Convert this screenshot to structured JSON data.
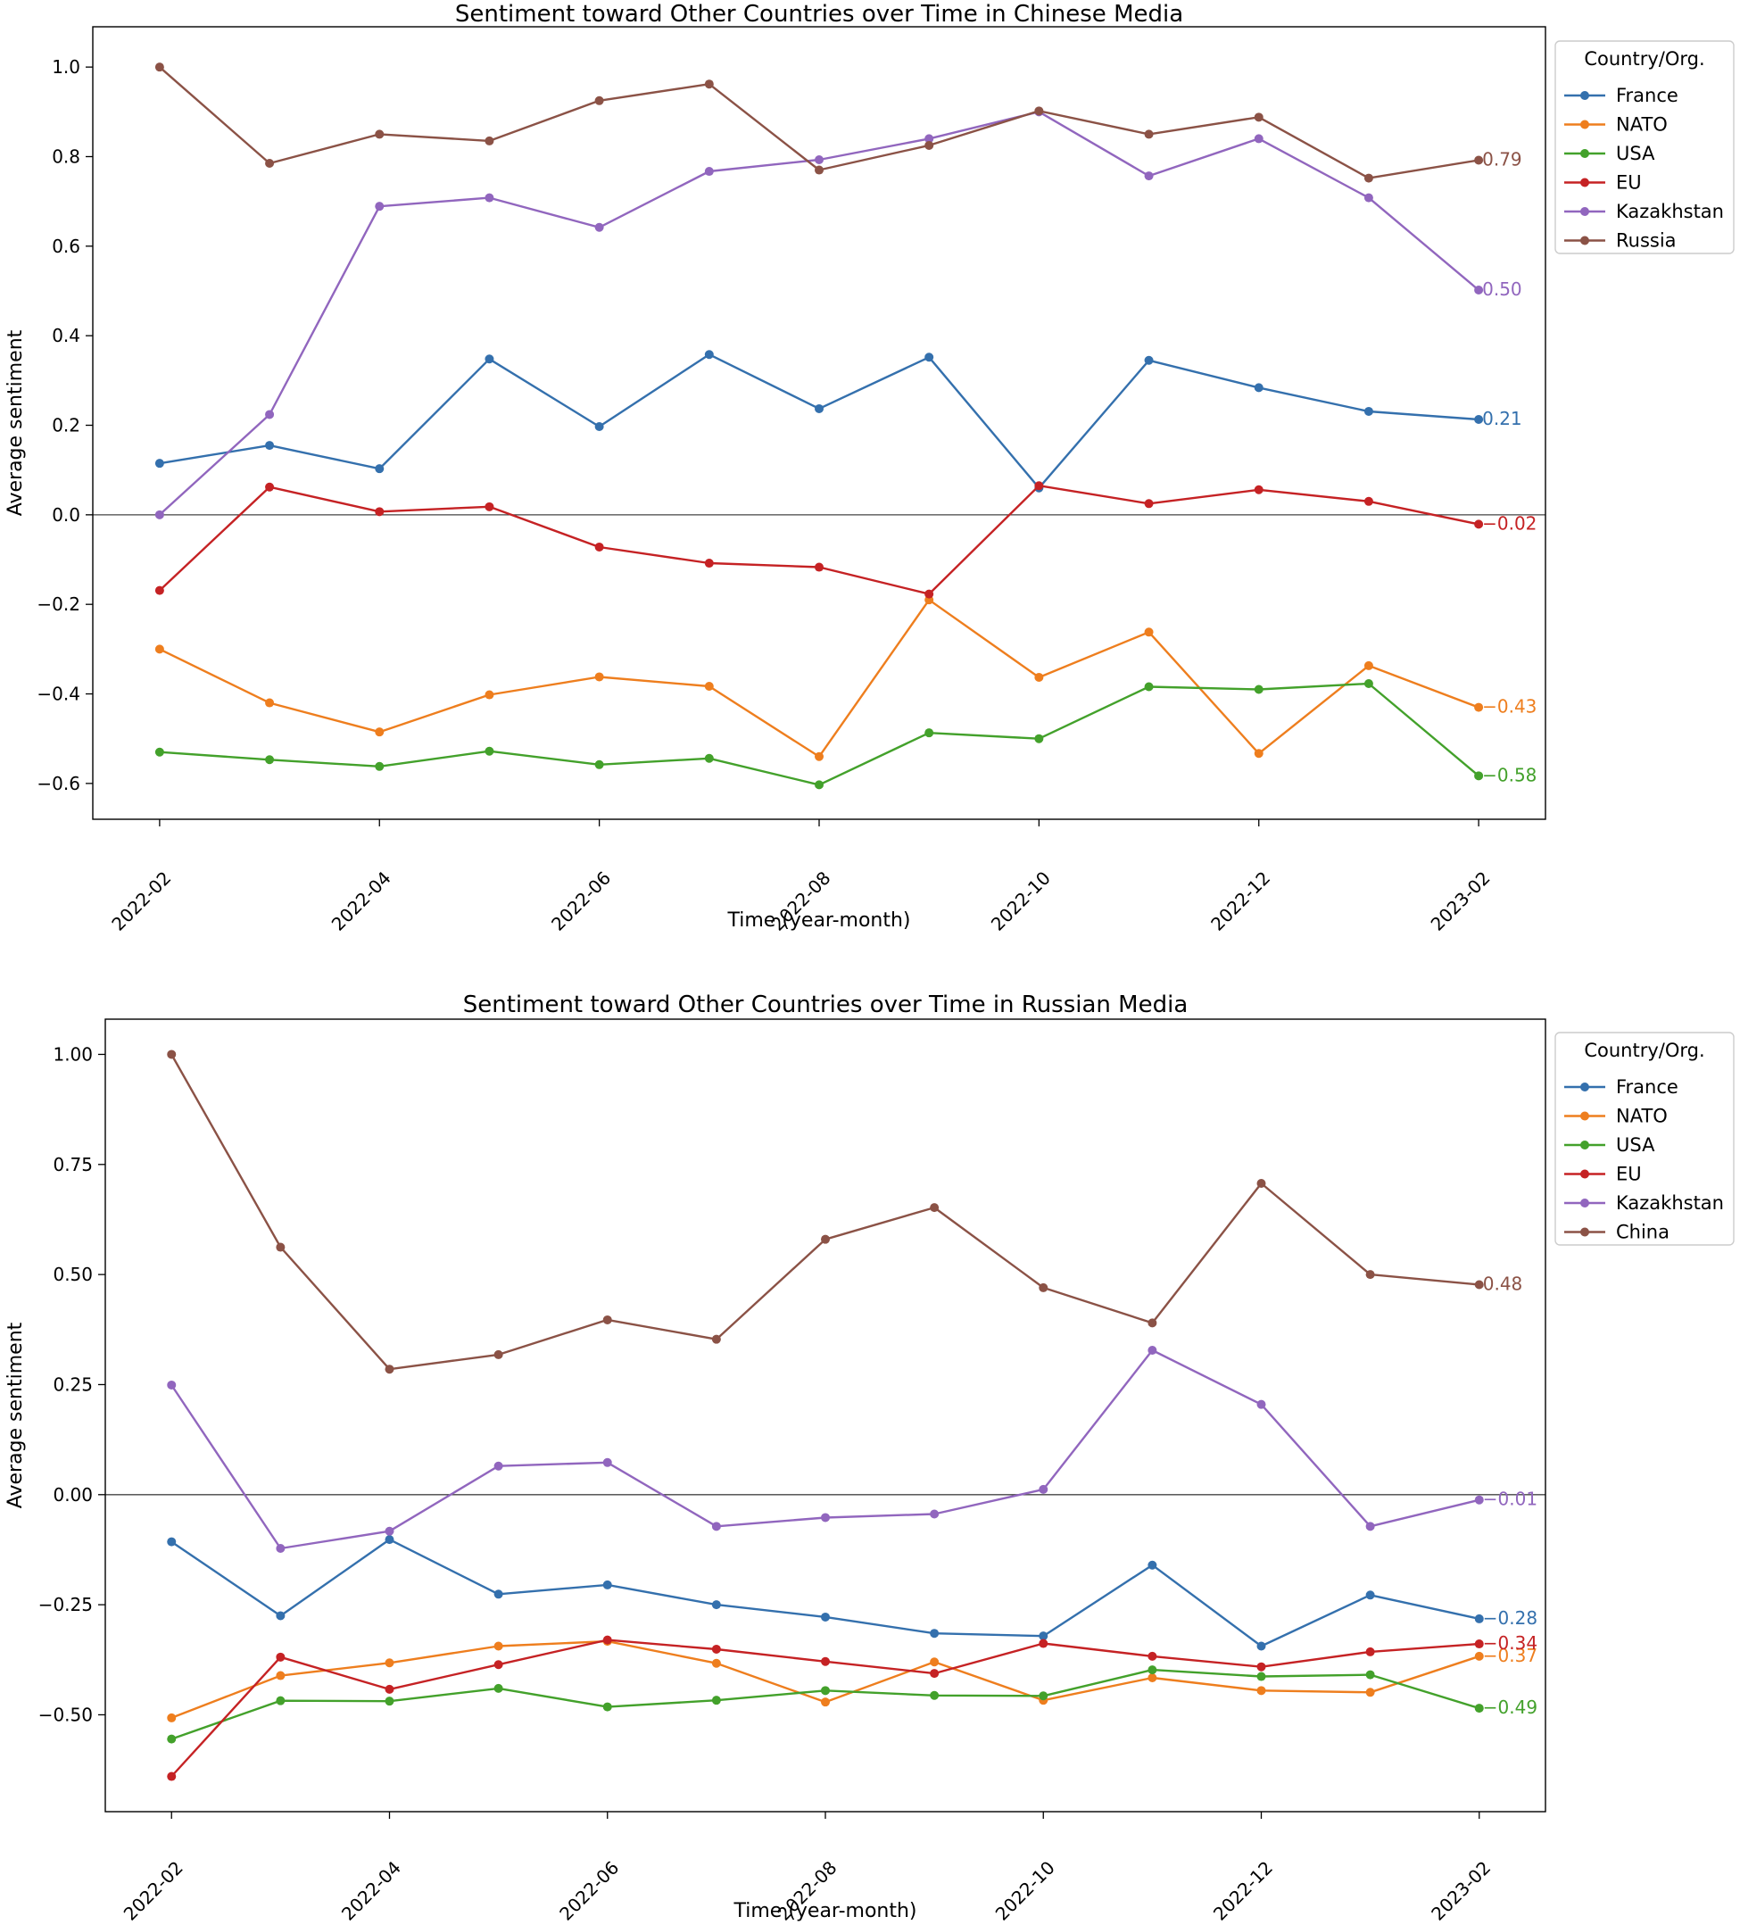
{
  "chart_data": [
    {
      "type": "line",
      "title": "Sentiment toward Other Countries over Time in Chinese Media",
      "xlabel": "Time (year-month)",
      "ylabel": "Average sentiment",
      "x": [
        "2022-02",
        "2022-03",
        "2022-04",
        "2022-05",
        "2022-06",
        "2022-07",
        "2022-08",
        "2022-09",
        "2022-10",
        "2022-11",
        "2022-12",
        "2023-01",
        "2023-02"
      ],
      "xticks": [
        "2022-02",
        "2022-04",
        "2022-06",
        "2022-08",
        "2022-10",
        "2022-12",
        "2023-02"
      ],
      "yticks": [
        "1.0",
        "0.8",
        "0.6",
        "0.4",
        "0.2",
        "0.0",
        "−0.2",
        "−0.4",
        "−0.6"
      ],
      "ylim": [
        -0.68,
        1.09
      ],
      "zero_line": true,
      "legend_title": "Country/Org.",
      "legend_position": "outside-top-right",
      "series": [
        {
          "name": "France",
          "color": "#3470ad",
          "values": [
            0.115,
            0.155,
            0.103,
            0.348,
            0.197,
            0.358,
            0.237,
            0.352,
            0.06,
            0.345,
            0.284,
            0.231,
            0.213
          ],
          "end_label": "0.21"
        },
        {
          "name": "NATO",
          "color": "#ee7e1e",
          "values": [
            -0.3,
            -0.42,
            -0.485,
            -0.402,
            -0.362,
            -0.383,
            -0.54,
            -0.19,
            -0.363,
            -0.262,
            -0.533,
            -0.337,
            -0.43
          ],
          "end_label": "−0.43"
        },
        {
          "name": "USA",
          "color": "#43a12b",
          "values": [
            -0.53,
            -0.547,
            -0.562,
            -0.528,
            -0.558,
            -0.544,
            -0.603,
            -0.487,
            -0.5,
            -0.384,
            -0.39,
            -0.377,
            -0.583
          ],
          "end_label": "−0.58"
        },
        {
          "name": "EU",
          "color": "#c52224",
          "values": [
            -0.169,
            0.062,
            0.007,
            0.018,
            -0.072,
            -0.108,
            -0.117,
            -0.177,
            0.065,
            0.025,
            0.056,
            0.03,
            -0.021
          ],
          "end_label": "−0.02"
        },
        {
          "name": "Kazakhstan",
          "color": "#9166be",
          "values": [
            0.0,
            0.224,
            0.689,
            0.708,
            0.642,
            0.767,
            0.793,
            0.84,
            0.9,
            0.757,
            0.84,
            0.708,
            0.502
          ],
          "end_label": "0.50"
        },
        {
          "name": "Russia",
          "color": "#8b5246",
          "values": [
            1.0,
            0.785,
            0.85,
            0.835,
            0.925,
            0.962,
            0.77,
            0.825,
            0.902,
            0.85,
            0.888,
            0.752,
            0.792
          ],
          "end_label": "0.79"
        }
      ]
    },
    {
      "type": "line",
      "title": "Sentiment toward Other Countries over Time in Russian Media",
      "xlabel": "Time (year-month)",
      "ylabel": "Average sentiment",
      "x": [
        "2022-02",
        "2022-03",
        "2022-04",
        "2022-05",
        "2022-06",
        "2022-07",
        "2022-08",
        "2022-09",
        "2022-10",
        "2022-11",
        "2022-12",
        "2023-01",
        "2023-02"
      ],
      "xticks": [
        "2022-02",
        "2022-04",
        "2022-06",
        "2022-08",
        "2022-10",
        "2022-12",
        "2023-02"
      ],
      "yticks": [
        "1.00",
        "0.75",
        "0.50",
        "0.25",
        "0.00",
        "−0.25",
        "−0.50"
      ],
      "ylim": [
        -0.72,
        1.08
      ],
      "zero_line": true,
      "legend_title": "Country/Org.",
      "legend_position": "outside-top-right",
      "series": [
        {
          "name": "France",
          "color": "#3470ad",
          "values": [
            -0.107,
            -0.275,
            -0.102,
            -0.226,
            -0.205,
            -0.25,
            -0.278,
            -0.315,
            -0.321,
            -0.16,
            -0.344,
            -0.228,
            -0.282
          ],
          "end_label": "−0.28"
        },
        {
          "name": "NATO",
          "color": "#ee7e1e",
          "values": [
            -0.507,
            -0.411,
            -0.382,
            -0.344,
            -0.333,
            -0.383,
            -0.471,
            -0.38,
            -0.467,
            -0.416,
            -0.445,
            -0.449,
            -0.367
          ],
          "end_label": "−0.37"
        },
        {
          "name": "USA",
          "color": "#43a12b",
          "values": [
            -0.555,
            -0.468,
            -0.469,
            -0.44,
            -0.482,
            -0.467,
            -0.445,
            -0.456,
            -0.457,
            -0.398,
            -0.413,
            -0.409,
            -0.485
          ],
          "end_label": "−0.49"
        },
        {
          "name": "EU",
          "color": "#c52224",
          "values": [
            -0.64,
            -0.369,
            -0.442,
            -0.386,
            -0.33,
            -0.351,
            -0.379,
            -0.406,
            -0.338,
            -0.367,
            -0.391,
            -0.357,
            -0.339
          ],
          "end_label": "−0.34"
        },
        {
          "name": "Kazakhstan",
          "color": "#9166be",
          "values": [
            0.249,
            -0.122,
            -0.083,
            0.065,
            0.073,
            -0.072,
            -0.052,
            -0.044,
            0.012,
            0.328,
            0.205,
            -0.072,
            -0.012
          ],
          "end_label": "−0.01"
        },
        {
          "name": "China",
          "color": "#8b5246",
          "values": [
            1.0,
            0.562,
            0.285,
            0.318,
            0.397,
            0.353,
            0.58,
            0.652,
            0.47,
            0.39,
            0.707,
            0.5,
            0.477
          ],
          "end_label": "0.48"
        }
      ]
    }
  ]
}
